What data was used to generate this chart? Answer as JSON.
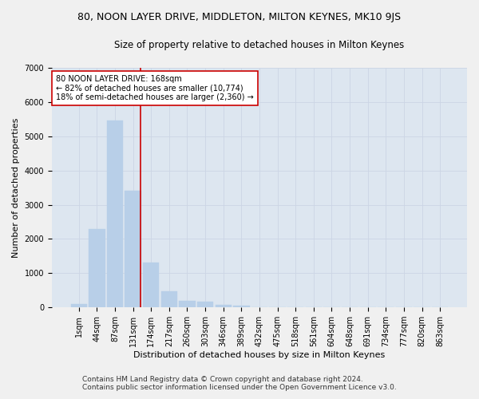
{
  "title": "80, NOON LAYER DRIVE, MIDDLETON, MILTON KEYNES, MK10 9JS",
  "subtitle": "Size of property relative to detached houses in Milton Keynes",
  "xlabel": "Distribution of detached houses by size in Milton Keynes",
  "ylabel": "Number of detached properties",
  "footer_line1": "Contains HM Land Registry data © Crown copyright and database right 2024.",
  "footer_line2": "Contains public sector information licensed under the Open Government Licence v3.0.",
  "categories": [
    "1sqm",
    "44sqm",
    "87sqm",
    "131sqm",
    "174sqm",
    "217sqm",
    "260sqm",
    "303sqm",
    "346sqm",
    "389sqm",
    "432sqm",
    "475sqm",
    "518sqm",
    "561sqm",
    "604sqm",
    "648sqm",
    "691sqm",
    "734sqm",
    "777sqm",
    "820sqm",
    "863sqm"
  ],
  "values": [
    90,
    2280,
    5450,
    3420,
    1300,
    460,
    185,
    160,
    85,
    50,
    0,
    0,
    0,
    0,
    0,
    0,
    0,
    0,
    0,
    0,
    0
  ],
  "bar_color": "#b8cfe8",
  "bar_edgecolor": "#b8cfe8",
  "vline_color": "#cc0000",
  "vline_pos": 3.42,
  "annotation_text": "80 NOON LAYER DRIVE: 168sqm\n← 82% of detached houses are smaller (10,774)\n18% of semi-detached houses are larger (2,360) →",
  "annotation_box_facecolor": "#ffffff",
  "annotation_box_edgecolor": "#cc0000",
  "ylim": [
    0,
    7000
  ],
  "yticks": [
    0,
    1000,
    2000,
    3000,
    4000,
    5000,
    6000,
    7000
  ],
  "grid_color": "#ccd5e5",
  "plot_bgcolor": "#dde6f0",
  "fig_bgcolor": "#f0f0f0",
  "title_fontsize": 9,
  "subtitle_fontsize": 8.5,
  "xlabel_fontsize": 8,
  "ylabel_fontsize": 8,
  "tick_fontsize": 7,
  "annotation_fontsize": 7,
  "footer_fontsize": 6.5
}
